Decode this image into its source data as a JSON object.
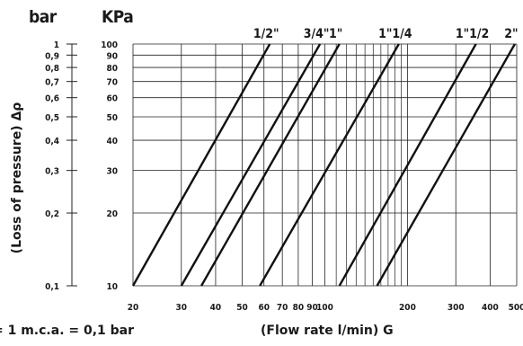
{
  "chart_data": {
    "type": "line",
    "xscale": "log",
    "yscale": "log",
    "xlim": [
      20,
      500
    ],
    "ylim": [
      10,
      100
    ],
    "xlabel": "(Flow rate l/min) G",
    "ylabel": "(Loss of pressure) Δρ",
    "y_unit_left": "bar",
    "y_unit_right": "KPa",
    "note": "= 1 m.c.a. = 0,1 bar",
    "x_ticks": [
      20,
      30,
      40,
      50,
      60,
      70,
      80,
      90,
      100,
      200,
      300,
      400,
      500
    ],
    "x_tick_labels": [
      "20",
      "30",
      "40",
      "50",
      "60",
      "70",
      "80",
      "90",
      "100",
      "200",
      "300",
      "400",
      "500"
    ],
    "y_ticks": [
      10,
      20,
      30,
      40,
      50,
      60,
      70,
      80,
      90,
      100
    ],
    "y_tick_labels_kpa": [
      "10",
      "20",
      "30",
      "40",
      "50",
      "60",
      "70",
      "80",
      "90",
      "100"
    ],
    "y_tick_labels_bar": [
      "0,1",
      "0,2",
      "0,3",
      "0,4",
      "0,5",
      "0,6",
      "0,7",
      "0,8",
      "0,9",
      "1"
    ],
    "grid": true,
    "series": [
      {
        "name": "1/2\"",
        "x": [
          20,
          63
        ],
        "y": [
          10,
          100
        ]
      },
      {
        "name": "3/4\"",
        "x": [
          30,
          96
        ],
        "y": [
          10,
          100
        ]
      },
      {
        "name": "1\"",
        "x": [
          35.5,
          113
        ],
        "y": [
          10,
          100
        ]
      },
      {
        "name": "1\"1/4",
        "x": [
          58,
          186
        ],
        "y": [
          10,
          100
        ]
      },
      {
        "name": "1\"1/2",
        "x": [
          113,
          355
        ],
        "y": [
          10,
          100
        ]
      },
      {
        "name": "2\"",
        "x": [
          155,
          492
        ],
        "y": [
          10,
          100
        ]
      }
    ]
  }
}
